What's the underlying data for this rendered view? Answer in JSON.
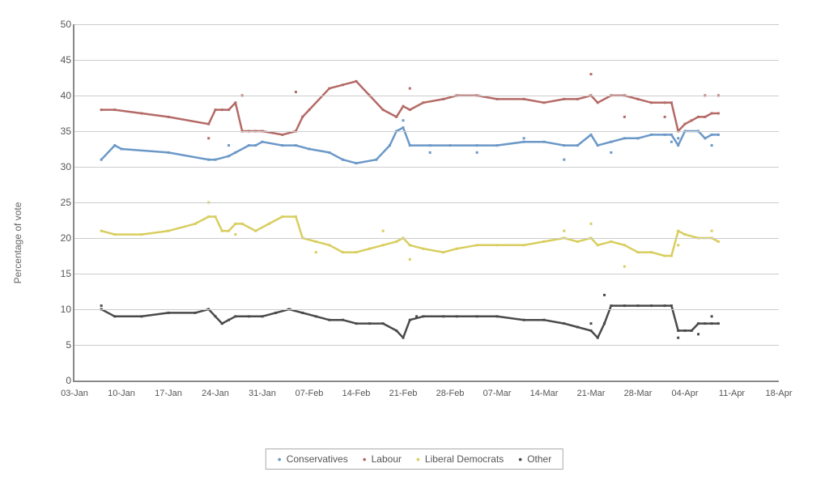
{
  "chart": {
    "type": "line",
    "ylabel": "Percentage of vote",
    "ylabel_fontsize": 12,
    "xlim": [
      0,
      105
    ],
    "ylim": [
      0,
      50
    ],
    "ytick_step": 5,
    "yticks": [
      0,
      5,
      10,
      15,
      20,
      25,
      30,
      35,
      40,
      45,
      50
    ],
    "xticks": [
      {
        "x": 0,
        "label": "03-Jan"
      },
      {
        "x": 7,
        "label": "10-Jan"
      },
      {
        "x": 14,
        "label": "17-Jan"
      },
      {
        "x": 21,
        "label": "24-Jan"
      },
      {
        "x": 28,
        "label": "31-Jan"
      },
      {
        "x": 35,
        "label": "07-Feb"
      },
      {
        "x": 42,
        "label": "14-Feb"
      },
      {
        "x": 49,
        "label": "21-Feb"
      },
      {
        "x": 56,
        "label": "28-Feb"
      },
      {
        "x": 63,
        "label": "07-Mar"
      },
      {
        "x": 70,
        "label": "14-Mar"
      },
      {
        "x": 77,
        "label": "21-Mar"
      },
      {
        "x": 84,
        "label": "28-Mar"
      },
      {
        "x": 91,
        "label": "04-Apr"
      },
      {
        "x": 98,
        "label": "11-Apr"
      },
      {
        "x": 105,
        "label": "18-Apr"
      }
    ],
    "background_color": "#ffffff",
    "grid_color": "#cccccc",
    "axis_color": "#888888",
    "line_width": 2.5,
    "marker_size": 3,
    "series": [
      {
        "name": "Conservatives",
        "color": "#6b98c7",
        "marker_color": "#6b98c7",
        "points": [
          {
            "x": 4,
            "y": 31
          },
          {
            "x": 6,
            "y": 33
          },
          {
            "x": 7,
            "y": 32.5
          },
          {
            "x": 14,
            "y": 32
          },
          {
            "x": 20,
            "y": 31
          },
          {
            "x": 21,
            "y": 31
          },
          {
            "x": 23,
            "y": 31.5
          },
          {
            "x": 24,
            "y": 32
          },
          {
            "x": 26,
            "y": 33
          },
          {
            "x": 27,
            "y": 33
          },
          {
            "x": 28,
            "y": 33.5
          },
          {
            "x": 31,
            "y": 33
          },
          {
            "x": 33,
            "y": 33
          },
          {
            "x": 35,
            "y": 32.5
          },
          {
            "x": 38,
            "y": 32
          },
          {
            "x": 40,
            "y": 31
          },
          {
            "x": 42,
            "y": 30.5
          },
          {
            "x": 45,
            "y": 31
          },
          {
            "x": 47,
            "y": 33
          },
          {
            "x": 48,
            "y": 35
          },
          {
            "x": 49,
            "y": 35.5
          },
          {
            "x": 50,
            "y": 33
          },
          {
            "x": 53,
            "y": 33
          },
          {
            "x": 56,
            "y": 33
          },
          {
            "x": 60,
            "y": 33
          },
          {
            "x": 63,
            "y": 33
          },
          {
            "x": 67,
            "y": 33.5
          },
          {
            "x": 70,
            "y": 33.5
          },
          {
            "x": 73,
            "y": 33
          },
          {
            "x": 75,
            "y": 33
          },
          {
            "x": 77,
            "y": 34.5
          },
          {
            "x": 78,
            "y": 33
          },
          {
            "x": 80,
            "y": 33.5
          },
          {
            "x": 82,
            "y": 34
          },
          {
            "x": 84,
            "y": 34
          },
          {
            "x": 86,
            "y": 34.5
          },
          {
            "x": 88,
            "y": 34.5
          },
          {
            "x": 89,
            "y": 34.5
          },
          {
            "x": 90,
            "y": 33
          },
          {
            "x": 91,
            "y": 35
          },
          {
            "x": 93,
            "y": 35
          },
          {
            "x": 94,
            "y": 34
          },
          {
            "x": 95,
            "y": 34.5
          },
          {
            "x": 96,
            "y": 34.5
          }
        ],
        "extra_markers": [
          {
            "x": 23,
            "y": 33
          },
          {
            "x": 49,
            "y": 36.5
          },
          {
            "x": 53,
            "y": 32
          },
          {
            "x": 60,
            "y": 32
          },
          {
            "x": 67,
            "y": 34
          },
          {
            "x": 73,
            "y": 31
          },
          {
            "x": 80,
            "y": 32
          },
          {
            "x": 89,
            "y": 33.5
          },
          {
            "x": 90,
            "y": 34
          },
          {
            "x": 95,
            "y": 33
          }
        ]
      },
      {
        "name": "Labour",
        "color": "#b46a66",
        "marker_color": "#b46a66",
        "points": [
          {
            "x": 4,
            "y": 38
          },
          {
            "x": 6,
            "y": 38
          },
          {
            "x": 10,
            "y": 37.5
          },
          {
            "x": 14,
            "y": 37
          },
          {
            "x": 20,
            "y": 36
          },
          {
            "x": 21,
            "y": 38
          },
          {
            "x": 22,
            "y": 38
          },
          {
            "x": 23,
            "y": 38
          },
          {
            "x": 24,
            "y": 39
          },
          {
            "x": 25,
            "y": 35
          },
          {
            "x": 26,
            "y": 35
          },
          {
            "x": 27,
            "y": 35
          },
          {
            "x": 28,
            "y": 35
          },
          {
            "x": 31,
            "y": 34.5
          },
          {
            "x": 33,
            "y": 35
          },
          {
            "x": 34,
            "y": 37
          },
          {
            "x": 35,
            "y": 38
          },
          {
            "x": 38,
            "y": 41
          },
          {
            "x": 40,
            "y": 41.5
          },
          {
            "x": 42,
            "y": 42
          },
          {
            "x": 44,
            "y": 40
          },
          {
            "x": 46,
            "y": 38
          },
          {
            "x": 48,
            "y": 37
          },
          {
            "x": 49,
            "y": 38.5
          },
          {
            "x": 50,
            "y": 38
          },
          {
            "x": 52,
            "y": 39
          },
          {
            "x": 55,
            "y": 39.5
          },
          {
            "x": 57,
            "y": 40
          },
          {
            "x": 60,
            "y": 40
          },
          {
            "x": 63,
            "y": 39.5
          },
          {
            "x": 67,
            "y": 39.5
          },
          {
            "x": 70,
            "y": 39
          },
          {
            "x": 73,
            "y": 39.5
          },
          {
            "x": 75,
            "y": 39.5
          },
          {
            "x": 77,
            "y": 40
          },
          {
            "x": 78,
            "y": 39
          },
          {
            "x": 80,
            "y": 40
          },
          {
            "x": 82,
            "y": 40
          },
          {
            "x": 84,
            "y": 39.5
          },
          {
            "x": 86,
            "y": 39
          },
          {
            "x": 88,
            "y": 39
          },
          {
            "x": 89,
            "y": 39
          },
          {
            "x": 90,
            "y": 35
          },
          {
            "x": 91,
            "y": 36
          },
          {
            "x": 92,
            "y": 36.5
          },
          {
            "x": 93,
            "y": 37
          },
          {
            "x": 94,
            "y": 37
          },
          {
            "x": 95,
            "y": 37.5
          },
          {
            "x": 96,
            "y": 37.5
          }
        ],
        "extra_markers": [
          {
            "x": 20,
            "y": 34
          },
          {
            "x": 25,
            "y": 40
          },
          {
            "x": 33,
            "y": 40.5
          },
          {
            "x": 50,
            "y": 41
          },
          {
            "x": 57,
            "y": 40
          },
          {
            "x": 77,
            "y": 43
          },
          {
            "x": 82,
            "y": 37
          },
          {
            "x": 88,
            "y": 37
          },
          {
            "x": 94,
            "y": 40
          },
          {
            "x": 96,
            "y": 40
          }
        ]
      },
      {
        "name": "Liberal Democrats",
        "color": "#d8ce5f",
        "marker_color": "#d8ce5f",
        "points": [
          {
            "x": 4,
            "y": 21
          },
          {
            "x": 6,
            "y": 20.5
          },
          {
            "x": 10,
            "y": 20.5
          },
          {
            "x": 14,
            "y": 21
          },
          {
            "x": 18,
            "y": 22
          },
          {
            "x": 20,
            "y": 23
          },
          {
            "x": 21,
            "y": 23
          },
          {
            "x": 22,
            "y": 21
          },
          {
            "x": 23,
            "y": 21
          },
          {
            "x": 24,
            "y": 22
          },
          {
            "x": 25,
            "y": 22
          },
          {
            "x": 27,
            "y": 21
          },
          {
            "x": 29,
            "y": 22
          },
          {
            "x": 31,
            "y": 23
          },
          {
            "x": 33,
            "y": 23
          },
          {
            "x": 34,
            "y": 20
          },
          {
            "x": 36,
            "y": 19.5
          },
          {
            "x": 38,
            "y": 19
          },
          {
            "x": 40,
            "y": 18
          },
          {
            "x": 42,
            "y": 18
          },
          {
            "x": 44,
            "y": 18.5
          },
          {
            "x": 46,
            "y": 19
          },
          {
            "x": 48,
            "y": 19.5
          },
          {
            "x": 49,
            "y": 20
          },
          {
            "x": 50,
            "y": 19
          },
          {
            "x": 52,
            "y": 18.5
          },
          {
            "x": 55,
            "y": 18
          },
          {
            "x": 57,
            "y": 18.5
          },
          {
            "x": 60,
            "y": 19
          },
          {
            "x": 63,
            "y": 19
          },
          {
            "x": 67,
            "y": 19
          },
          {
            "x": 70,
            "y": 19.5
          },
          {
            "x": 73,
            "y": 20
          },
          {
            "x": 75,
            "y": 19.5
          },
          {
            "x": 77,
            "y": 20
          },
          {
            "x": 78,
            "y": 19
          },
          {
            "x": 80,
            "y": 19.5
          },
          {
            "x": 82,
            "y": 19
          },
          {
            "x": 84,
            "y": 18
          },
          {
            "x": 86,
            "y": 18
          },
          {
            "x": 88,
            "y": 17.5
          },
          {
            "x": 89,
            "y": 17.5
          },
          {
            "x": 90,
            "y": 21
          },
          {
            "x": 91,
            "y": 20.5
          },
          {
            "x": 93,
            "y": 20
          },
          {
            "x": 95,
            "y": 20
          },
          {
            "x": 96,
            "y": 19.5
          }
        ],
        "extra_markers": [
          {
            "x": 20,
            "y": 25
          },
          {
            "x": 24,
            "y": 20.5
          },
          {
            "x": 36,
            "y": 18
          },
          {
            "x": 46,
            "y": 21
          },
          {
            "x": 50,
            "y": 17
          },
          {
            "x": 73,
            "y": 21
          },
          {
            "x": 77,
            "y": 22
          },
          {
            "x": 82,
            "y": 16
          },
          {
            "x": 90,
            "y": 19
          },
          {
            "x": 95,
            "y": 21
          }
        ]
      },
      {
        "name": "Other",
        "color": "#4a4a4a",
        "marker_color": "#4a4a4a",
        "points": [
          {
            "x": 4,
            "y": 10
          },
          {
            "x": 6,
            "y": 9
          },
          {
            "x": 10,
            "y": 9
          },
          {
            "x": 14,
            "y": 9.5
          },
          {
            "x": 18,
            "y": 9.5
          },
          {
            "x": 20,
            "y": 10
          },
          {
            "x": 21,
            "y": 9
          },
          {
            "x": 22,
            "y": 8
          },
          {
            "x": 23,
            "y": 8.5
          },
          {
            "x": 24,
            "y": 9
          },
          {
            "x": 26,
            "y": 9
          },
          {
            "x": 28,
            "y": 9
          },
          {
            "x": 30,
            "y": 9.5
          },
          {
            "x": 32,
            "y": 10
          },
          {
            "x": 34,
            "y": 9.5
          },
          {
            "x": 36,
            "y": 9
          },
          {
            "x": 38,
            "y": 8.5
          },
          {
            "x": 40,
            "y": 8.5
          },
          {
            "x": 42,
            "y": 8
          },
          {
            "x": 44,
            "y": 8
          },
          {
            "x": 46,
            "y": 8
          },
          {
            "x": 48,
            "y": 7
          },
          {
            "x": 49,
            "y": 6
          },
          {
            "x": 50,
            "y": 8.5
          },
          {
            "x": 52,
            "y": 9
          },
          {
            "x": 55,
            "y": 9
          },
          {
            "x": 57,
            "y": 9
          },
          {
            "x": 60,
            "y": 9
          },
          {
            "x": 63,
            "y": 9
          },
          {
            "x": 67,
            "y": 8.5
          },
          {
            "x": 70,
            "y": 8.5
          },
          {
            "x": 73,
            "y": 8
          },
          {
            "x": 75,
            "y": 7.5
          },
          {
            "x": 77,
            "y": 7
          },
          {
            "x": 78,
            "y": 6
          },
          {
            "x": 79,
            "y": 8
          },
          {
            "x": 80,
            "y": 10.5
          },
          {
            "x": 82,
            "y": 10.5
          },
          {
            "x": 84,
            "y": 10.5
          },
          {
            "x": 86,
            "y": 10.5
          },
          {
            "x": 88,
            "y": 10.5
          },
          {
            "x": 89,
            "y": 10.5
          },
          {
            "x": 90,
            "y": 7
          },
          {
            "x": 91,
            "y": 7
          },
          {
            "x": 92,
            "y": 7
          },
          {
            "x": 93,
            "y": 8
          },
          {
            "x": 94,
            "y": 8
          },
          {
            "x": 95,
            "y": 8
          },
          {
            "x": 96,
            "y": 8
          }
        ],
        "extra_markers": [
          {
            "x": 4,
            "y": 10.5
          },
          {
            "x": 22,
            "y": 8
          },
          {
            "x": 51,
            "y": 9
          },
          {
            "x": 77,
            "y": 8
          },
          {
            "x": 79,
            "y": 12
          },
          {
            "x": 90,
            "y": 6
          },
          {
            "x": 93,
            "y": 6.5
          },
          {
            "x": 95,
            "y": 9
          }
        ]
      }
    ],
    "legend": {
      "items": [
        {
          "label": "Conservatives",
          "color": "#6b98c7"
        },
        {
          "label": "Labour",
          "color": "#b46a66"
        },
        {
          "label": "Liberal Democrats",
          "color": "#d8ce5f"
        },
        {
          "label": "Other",
          "color": "#4a4a4a"
        }
      ],
      "border_color": "#aaaaaa",
      "fontsize": 12
    }
  }
}
